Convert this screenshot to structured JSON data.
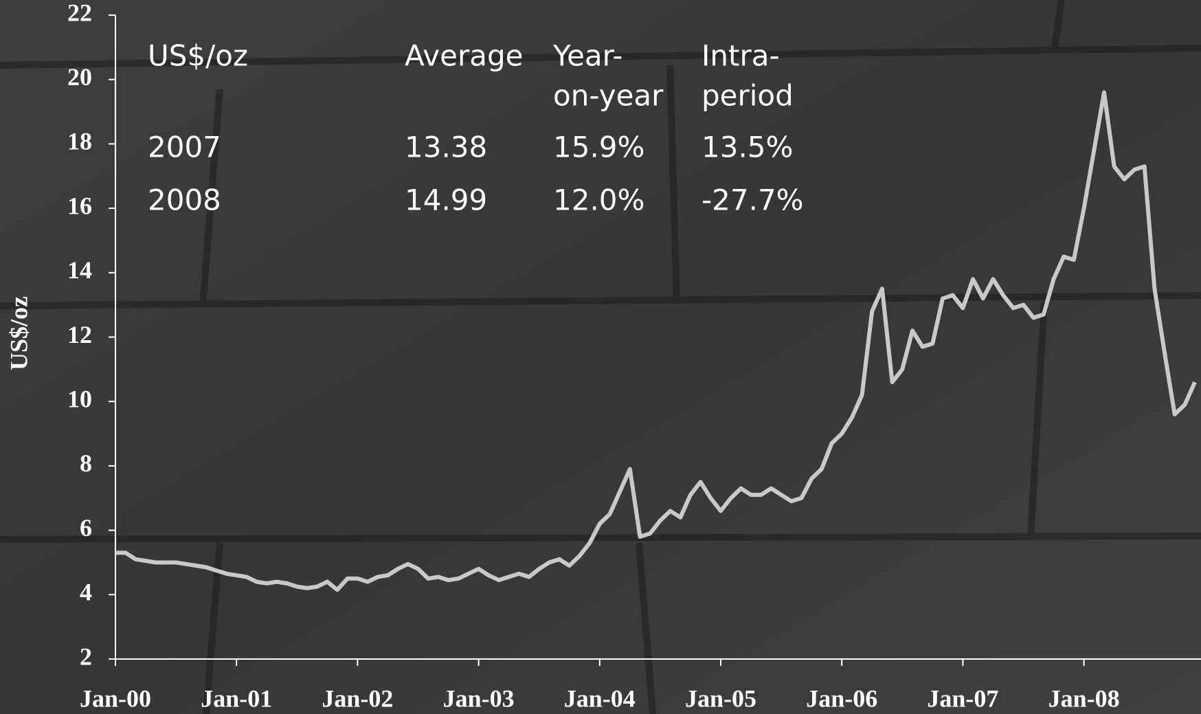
{
  "chart_data": {
    "type": "line",
    "y_label": "US$/oz",
    "categories": [
      "Jan-00",
      null,
      null,
      null,
      null,
      null,
      null,
      null,
      null,
      null,
      null,
      null,
      "Jan-01",
      null,
      null,
      null,
      null,
      null,
      null,
      null,
      null,
      null,
      null,
      null,
      "Jan-02",
      null,
      null,
      null,
      null,
      null,
      null,
      null,
      null,
      null,
      null,
      null,
      "Jan-03",
      null,
      null,
      null,
      null,
      null,
      null,
      null,
      null,
      null,
      null,
      null,
      "Jan-04",
      null,
      null,
      null,
      null,
      null,
      null,
      null,
      null,
      null,
      null,
      null,
      "Jan-05",
      null,
      null,
      null,
      null,
      null,
      null,
      null,
      null,
      null,
      null,
      null,
      "Jan-06",
      null,
      null,
      null,
      null,
      null,
      null,
      null,
      null,
      null,
      null,
      null,
      "Jan-07",
      null,
      null,
      null,
      null,
      null,
      null,
      null,
      null,
      null,
      null,
      null,
      "Jan-08",
      null,
      null,
      null,
      null,
      null,
      null,
      null,
      null,
      null,
      null,
      null
    ],
    "values": [
      5.3,
      5.3,
      5.1,
      5.05,
      5.0,
      5.0,
      5.0,
      4.95,
      4.9,
      4.85,
      4.75,
      4.65,
      4.6,
      4.55,
      4.4,
      4.35,
      4.4,
      4.35,
      4.25,
      4.2,
      4.25,
      4.4,
      4.15,
      4.5,
      4.5,
      4.4,
      4.55,
      4.6,
      4.8,
      4.95,
      4.8,
      4.5,
      4.55,
      4.45,
      4.5,
      4.65,
      4.8,
      4.6,
      4.45,
      4.55,
      4.65,
      4.55,
      4.8,
      5.0,
      5.1,
      4.9,
      5.2,
      5.6,
      6.2,
      6.5,
      7.2,
      7.9,
      5.8,
      5.9,
      6.3,
      6.6,
      6.4,
      7.1,
      7.5,
      7.0,
      6.6,
      7.0,
      7.3,
      7.1,
      7.1,
      7.3,
      7.1,
      6.9,
      7.0,
      7.6,
      7.9,
      8.7,
      9.0,
      9.5,
      10.2,
      12.8,
      13.5,
      10.6,
      11.0,
      12.2,
      11.7,
      11.8,
      13.2,
      13.3,
      12.9,
      13.8,
      13.2,
      13.8,
      13.3,
      12.9,
      13.0,
      12.6,
      12.7,
      13.8,
      14.5,
      14.4,
      16.0,
      17.8,
      19.6,
      17.3,
      16.9,
      17.2,
      17.3,
      13.5,
      11.5,
      9.6,
      9.9,
      10.6
    ],
    "color": "#c9c9c9",
    "ylim": [
      2,
      22
    ],
    "yticks": [
      2,
      4,
      6,
      8,
      10,
      12,
      14,
      16,
      18,
      20,
      22
    ],
    "table": {
      "columns": [
        [
          "US$/oz"
        ],
        [
          "Average"
        ],
        [
          "Year-",
          "on-year"
        ],
        [
          "Intra-",
          "period"
        ]
      ],
      "rows": [
        [
          "2007",
          "13.38",
          "15.9%",
          "13.5%"
        ],
        [
          "2008",
          "14.99",
          "12.0%",
          "-27.7%"
        ]
      ]
    }
  }
}
